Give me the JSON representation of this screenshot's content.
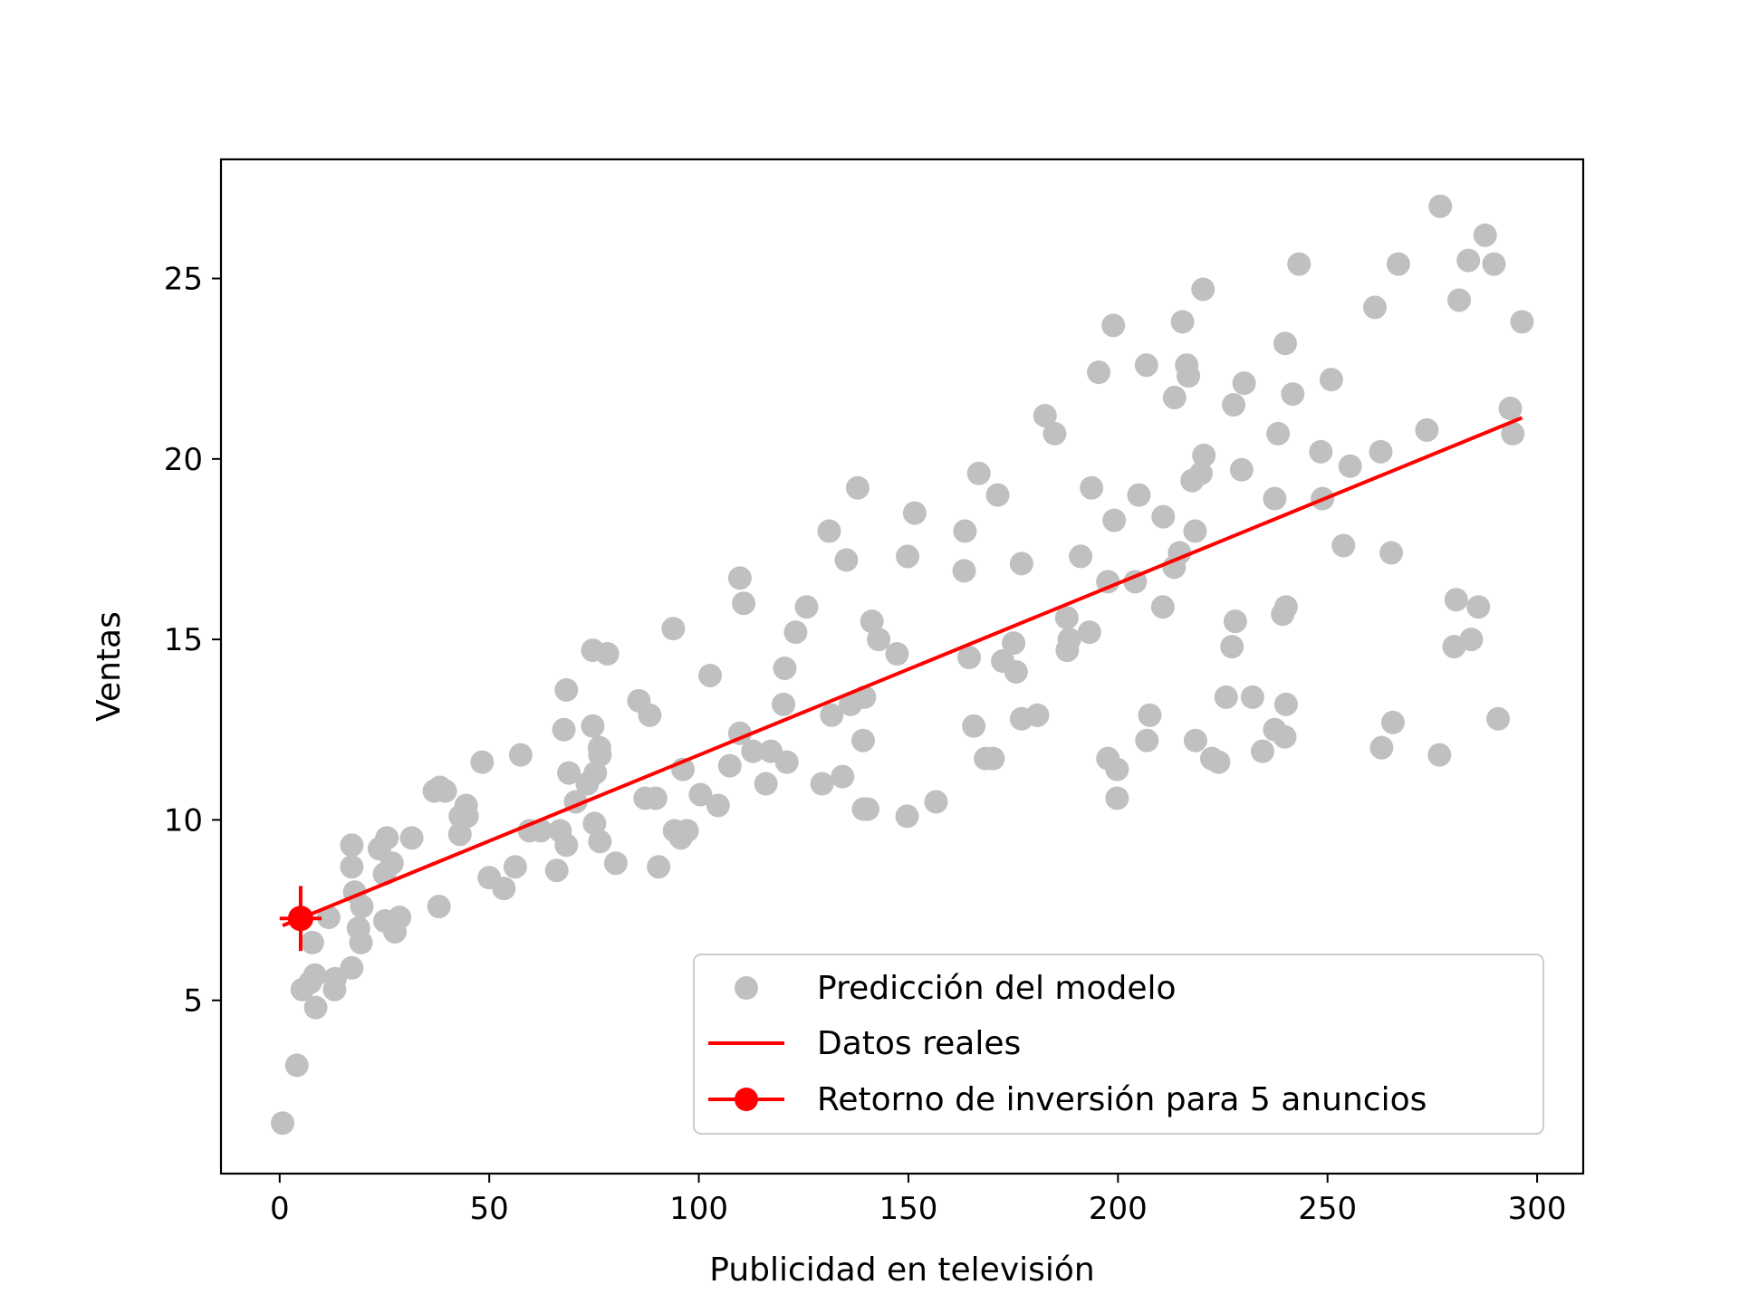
{
  "chart_data": {
    "type": "scatter",
    "title": "",
    "xlabel": "Publicidad en televisión",
    "ylabel": "Ventas",
    "xlim": [
      -14,
      311
    ],
    "ylim": [
      0.2,
      28.3
    ],
    "xticks": [
      0,
      50,
      100,
      150,
      200,
      250,
      300
    ],
    "yticks": [
      5,
      10,
      15,
      20,
      25
    ],
    "grid": false,
    "legend_position": "lower-right",
    "colors": {
      "scatter": "#c0c0c0",
      "line": "#ff0000",
      "point": "#ff0000"
    },
    "series": [
      {
        "name": "Predicción del modelo",
        "kind": "scatter",
        "points": [
          [
            0.7,
            1.6
          ],
          [
            4.1,
            3.2
          ],
          [
            8.6,
            4.8
          ],
          [
            5.4,
            5.3
          ],
          [
            7.3,
            5.5
          ],
          [
            8.4,
            5.7
          ],
          [
            13.1,
            5.3
          ],
          [
            13.2,
            5.6
          ],
          [
            17.2,
            5.9
          ],
          [
            19.4,
            6.6
          ],
          [
            18.8,
            7.0
          ],
          [
            7.8,
            6.6
          ],
          [
            11.7,
            7.3
          ],
          [
            25.1,
            7.2
          ],
          [
            27.5,
            6.9
          ],
          [
            28.6,
            7.3
          ],
          [
            19.6,
            7.6
          ],
          [
            17.9,
            8.0
          ],
          [
            17.2,
            8.7
          ],
          [
            17.2,
            9.3
          ],
          [
            25.0,
            8.5
          ],
          [
            26.8,
            8.8
          ],
          [
            23.8,
            9.2
          ],
          [
            25.6,
            9.5
          ],
          [
            31.5,
            9.5
          ],
          [
            38.0,
            7.6
          ],
          [
            36.9,
            10.8
          ],
          [
            38.2,
            10.9
          ],
          [
            39.5,
            10.8
          ],
          [
            43.0,
            9.6
          ],
          [
            43.1,
            10.1
          ],
          [
            44.5,
            10.4
          ],
          [
            44.7,
            10.1
          ],
          [
            48.3,
            11.6
          ],
          [
            50.0,
            8.4
          ],
          [
            53.5,
            8.1
          ],
          [
            56.2,
            8.7
          ],
          [
            57.5,
            11.8
          ],
          [
            59.6,
            9.7
          ],
          [
            62.3,
            9.7
          ],
          [
            66.1,
            8.6
          ],
          [
            66.9,
            9.7
          ],
          [
            68.4,
            9.3
          ],
          [
            67.8,
            12.5
          ],
          [
            68.4,
            13.6
          ],
          [
            69.0,
            11.3
          ],
          [
            70.6,
            10.5
          ],
          [
            73.4,
            11.0
          ],
          [
            74.7,
            12.6
          ],
          [
            74.7,
            14.7
          ],
          [
            75.1,
            9.9
          ],
          [
            75.3,
            11.3
          ],
          [
            76.3,
            12.0
          ],
          [
            76.4,
            11.8
          ],
          [
            76.4,
            9.4
          ],
          [
            78.2,
            14.6
          ],
          [
            80.2,
            8.8
          ],
          [
            85.7,
            13.3
          ],
          [
            87.2,
            10.6
          ],
          [
            88.3,
            12.9
          ],
          [
            89.7,
            10.6
          ],
          [
            90.4,
            8.7
          ],
          [
            93.9,
            15.3
          ],
          [
            94.2,
            9.7
          ],
          [
            95.7,
            9.5
          ],
          [
            96.2,
            11.4
          ],
          [
            97.2,
            9.7
          ],
          [
            100.4,
            10.7
          ],
          [
            102.7,
            14.0
          ],
          [
            104.6,
            10.4
          ],
          [
            107.4,
            11.5
          ],
          [
            109.8,
            16.7
          ],
          [
            110.7,
            16.0
          ],
          [
            109.8,
            12.4
          ],
          [
            112.9,
            11.9
          ],
          [
            116.0,
            11.0
          ],
          [
            117.2,
            11.9
          ],
          [
            120.2,
            13.2
          ],
          [
            120.5,
            14.2
          ],
          [
            121.0,
            11.6
          ],
          [
            123.1,
            15.2
          ],
          [
            125.7,
            15.9
          ],
          [
            129.4,
            11.0
          ],
          [
            131.1,
            18.0
          ],
          [
            131.7,
            12.9
          ],
          [
            134.3,
            11.2
          ],
          [
            135.2,
            17.2
          ],
          [
            136.2,
            13.2
          ],
          [
            137.9,
            19.2
          ],
          [
            139.2,
            12.2
          ],
          [
            139.3,
            10.3
          ],
          [
            139.5,
            13.4
          ],
          [
            140.3,
            10.3
          ],
          [
            141.3,
            15.5
          ],
          [
            142.9,
            15.0
          ],
          [
            147.3,
            14.6
          ],
          [
            149.7,
            10.1
          ],
          [
            149.8,
            17.3
          ],
          [
            151.5,
            18.5
          ],
          [
            156.6,
            10.5
          ],
          [
            163.3,
            16.9
          ],
          [
            163.5,
            18.0
          ],
          [
            164.5,
            14.5
          ],
          [
            165.6,
            12.6
          ],
          [
            166.8,
            19.6
          ],
          [
            168.4,
            11.7
          ],
          [
            170.2,
            11.7
          ],
          [
            171.3,
            19.0
          ],
          [
            172.5,
            14.4
          ],
          [
            175.1,
            14.9
          ],
          [
            175.7,
            14.1
          ],
          [
            177.0,
            12.8
          ],
          [
            177.0,
            17.1
          ],
          [
            180.8,
            12.9
          ],
          [
            182.6,
            21.2
          ],
          [
            184.9,
            20.7
          ],
          [
            187.8,
            15.6
          ],
          [
            187.9,
            14.7
          ],
          [
            188.4,
            15.0
          ],
          [
            191.1,
            17.3
          ],
          [
            193.2,
            15.2
          ],
          [
            193.7,
            19.2
          ],
          [
            195.4,
            22.4
          ],
          [
            197.6,
            16.6
          ],
          [
            197.6,
            11.7
          ],
          [
            198.9,
            23.7
          ],
          [
            199.1,
            18.3
          ],
          [
            199.8,
            10.6
          ],
          [
            199.8,
            11.4
          ],
          [
            204.1,
            16.6
          ],
          [
            205.0,
            19.0
          ],
          [
            206.8,
            22.6
          ],
          [
            206.9,
            12.2
          ],
          [
            207.6,
            12.9
          ],
          [
            210.7,
            15.9
          ],
          [
            210.8,
            18.4
          ],
          [
            213.4,
            17.0
          ],
          [
            213.5,
            21.7
          ],
          [
            214.7,
            17.4
          ],
          [
            215.4,
            23.8
          ],
          [
            216.4,
            22.6
          ],
          [
            216.8,
            22.3
          ],
          [
            217.7,
            19.4
          ],
          [
            218.4,
            18.0
          ],
          [
            218.5,
            12.2
          ],
          [
            219.8,
            19.6
          ],
          [
            220.3,
            24.7
          ],
          [
            220.5,
            20.1
          ],
          [
            222.4,
            11.7
          ],
          [
            224.0,
            11.6
          ],
          [
            225.8,
            13.4
          ],
          [
            227.2,
            14.8
          ],
          [
            227.6,
            21.5
          ],
          [
            228.0,
            15.5
          ],
          [
            229.5,
            19.7
          ],
          [
            230.1,
            22.1
          ],
          [
            232.1,
            13.4
          ],
          [
            234.5,
            11.9
          ],
          [
            237.4,
            12.5
          ],
          [
            237.4,
            18.9
          ],
          [
            238.2,
            20.7
          ],
          [
            239.3,
            15.7
          ],
          [
            239.8,
            12.3
          ],
          [
            239.9,
            23.2
          ],
          [
            240.1,
            15.9
          ],
          [
            240.1,
            13.2
          ],
          [
            241.7,
            21.8
          ],
          [
            243.2,
            25.4
          ],
          [
            248.4,
            20.2
          ],
          [
            248.8,
            18.9
          ],
          [
            250.9,
            22.2
          ],
          [
            253.8,
            17.6
          ],
          [
            255.4,
            19.8
          ],
          [
            261.3,
            24.2
          ],
          [
            262.7,
            20.2
          ],
          [
            262.9,
            12.0
          ],
          [
            265.2,
            17.4
          ],
          [
            265.6,
            12.7
          ],
          [
            266.9,
            25.4
          ],
          [
            273.7,
            20.8
          ],
          [
            276.7,
            11.8
          ],
          [
            276.9,
            27.0
          ],
          [
            280.2,
            14.8
          ],
          [
            280.7,
            16.1
          ],
          [
            281.4,
            24.4
          ],
          [
            283.6,
            25.5
          ],
          [
            284.3,
            15.0
          ],
          [
            286.0,
            15.9
          ],
          [
            287.6,
            26.2
          ],
          [
            289.7,
            25.4
          ],
          [
            290.7,
            12.8
          ],
          [
            293.6,
            21.4
          ],
          [
            294.2,
            20.7
          ],
          [
            296.4,
            23.8
          ]
        ]
      },
      {
        "name": "Datos reales",
        "kind": "line",
        "points": [
          [
            0.7,
            7.07
          ],
          [
            296.4,
            21.14
          ]
        ]
      },
      {
        "name": "Retorno de inversión para 5 anuncios",
        "kind": "point-with-error",
        "points": [
          [
            5,
            7.27
          ]
        ],
        "x_error": 5,
        "y_error": 0.9
      }
    ]
  }
}
